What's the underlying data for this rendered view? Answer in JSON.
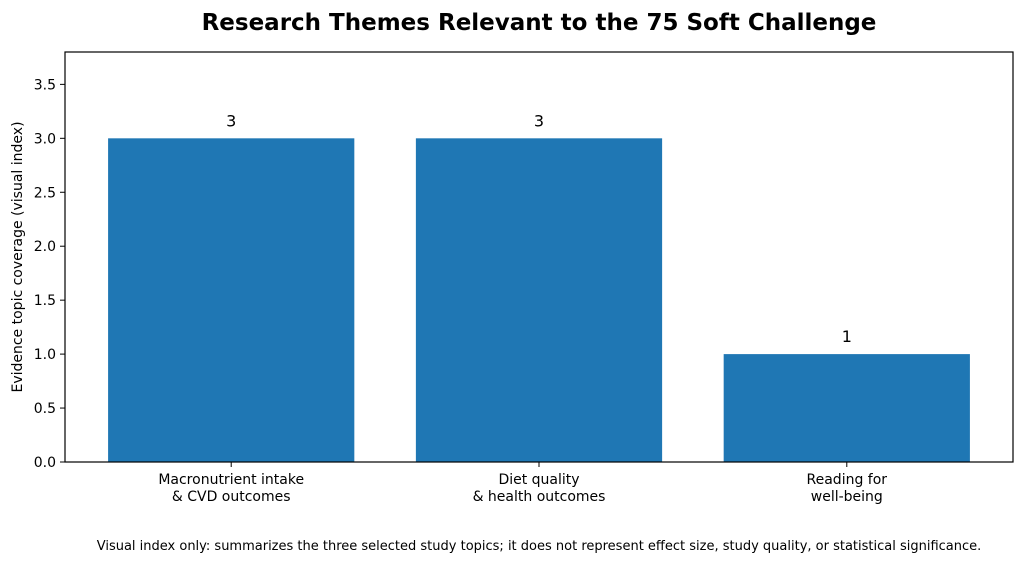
{
  "chart_data": {
    "type": "bar",
    "title": "Research Themes Relevant to the 75 Soft Challenge",
    "ylabel": "Evidence topic coverage (visual index)",
    "xlabel": "",
    "categories": [
      [
        "Macronutrient intake",
        "& CVD outcomes"
      ],
      [
        "Diet quality",
        "& health outcomes"
      ],
      [
        "Reading for",
        "well-being"
      ]
    ],
    "values": [
      3,
      3,
      1
    ],
    "data_labels": [
      "3",
      "3",
      "1"
    ],
    "ylim": [
      0,
      3.8
    ],
    "yticks": [
      0.0,
      0.5,
      1.0,
      1.5,
      2.0,
      2.5,
      3.0,
      3.5
    ],
    "ytick_labels": [
      "0.0",
      "0.5",
      "1.0",
      "1.5",
      "2.0",
      "2.5",
      "3.0",
      "3.5"
    ],
    "bar_color": "#1f77b4",
    "grid": false,
    "legend": "none"
  },
  "footnote": "Visual index only: summarizes the three selected study topics; it does not represent effect size, study quality, or statistical significance."
}
